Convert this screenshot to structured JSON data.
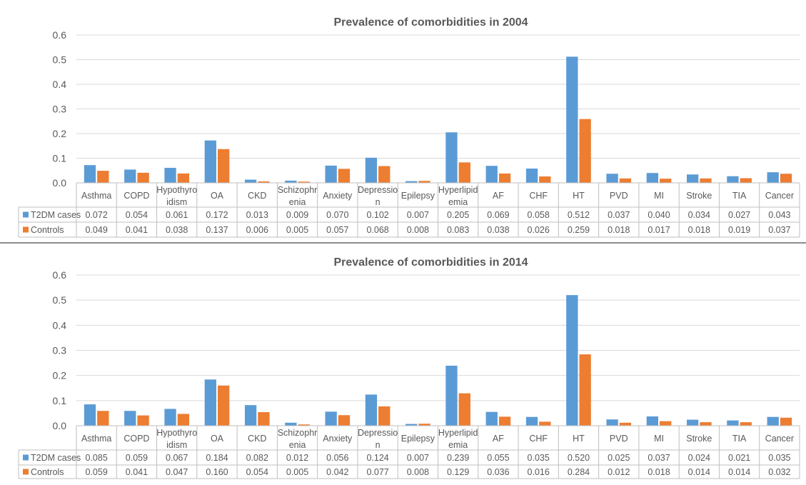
{
  "charts": [
    {
      "title": "Prevalence of comorbidities in 2004",
      "chart_data": {
        "type": "bar",
        "title": "Prevalence of comorbidities in 2004",
        "categories": [
          "Asthma",
          "COPD",
          "Hypothyroidism",
          "OA",
          "CKD",
          "Schizophrenia",
          "Anxiety",
          "Depression",
          "Epilepsy",
          "Hyperlipidemia",
          "AF",
          "CHF",
          "HT",
          "PVD",
          "MI",
          "Stroke",
          "TIA",
          "Cancer"
        ],
        "category_lines": [
          [
            "Asthma"
          ],
          [
            "COPD"
          ],
          [
            "Hypothyro",
            "idism"
          ],
          [
            "OA"
          ],
          [
            "CKD"
          ],
          [
            "Schizophr",
            "enia"
          ],
          [
            "Anxiety"
          ],
          [
            "Depressio",
            "n"
          ],
          [
            "Epilepsy"
          ],
          [
            "Hyperlipid",
            "emia"
          ],
          [
            "AF"
          ],
          [
            "CHF"
          ],
          [
            "HT"
          ],
          [
            "PVD"
          ],
          [
            "MI"
          ],
          [
            "Stroke"
          ],
          [
            "TIA"
          ],
          [
            "Cancer"
          ]
        ],
        "series": [
          {
            "name": "T2DM cases",
            "color": "#5b9bd5",
            "values": [
              0.072,
              0.054,
              0.061,
              0.172,
              0.013,
              0.009,
              0.07,
              0.102,
              0.007,
              0.205,
              0.069,
              0.058,
              0.512,
              0.037,
              0.04,
              0.034,
              0.027,
              0.043
            ],
            "labels": [
              "0.072",
              "0.054",
              "0.061",
              "0.172",
              "0.013",
              "0.009",
              "0.070",
              "0.102",
              "0.007",
              "0.205",
              "0.069",
              "0.058",
              "0.512",
              "0.037",
              "0.040",
              "0.034",
              "0.027",
              "0.043"
            ]
          },
          {
            "name": "Controls",
            "color": "#ed7d31",
            "values": [
              0.049,
              0.041,
              0.038,
              0.137,
              0.006,
              0.005,
              0.057,
              0.068,
              0.008,
              0.083,
              0.038,
              0.026,
              0.259,
              0.018,
              0.017,
              0.018,
              0.019,
              0.037
            ],
            "labels": [
              "0.049",
              "0.041",
              "0.038",
              "0.137",
              "0.006",
              "0.005",
              "0.057",
              "0.068",
              "0.008",
              "0.083",
              "0.038",
              "0.026",
              "0.259",
              "0.018",
              "0.017",
              "0.018",
              "0.019",
              "0.037"
            ]
          }
        ],
        "ylim": [
          0,
          0.6
        ],
        "yticks": [
          "0.0",
          "0.1",
          "0.2",
          "0.3",
          "0.4",
          "0.5",
          "0.6"
        ],
        "grid": true,
        "legend": "data-table"
      }
    },
    {
      "title": "Prevalence of comorbidities in 2014",
      "chart_data": {
        "type": "bar",
        "title": "Prevalence of comorbidities in 2014",
        "categories": [
          "Asthma",
          "COPD",
          "Hypothyroidism",
          "OA",
          "CKD",
          "Schizophrenia",
          "Anxiety",
          "Depression",
          "Epilepsy",
          "Hyperlipidemia",
          "AF",
          "CHF",
          "HT",
          "PVD",
          "MI",
          "Stroke",
          "TIA",
          "Cancer"
        ],
        "category_lines": [
          [
            "Asthma"
          ],
          [
            "COPD"
          ],
          [
            "Hypothyro",
            "idism"
          ],
          [
            "OA"
          ],
          [
            "CKD"
          ],
          [
            "Schizophr",
            "enia"
          ],
          [
            "Anxiety"
          ],
          [
            "Depressio",
            "n"
          ],
          [
            "Epilepsy"
          ],
          [
            "Hyperlipid",
            "emia"
          ],
          [
            "AF"
          ],
          [
            "CHF"
          ],
          [
            "HT"
          ],
          [
            "PVD"
          ],
          [
            "MI"
          ],
          [
            "Stroke"
          ],
          [
            "TIA"
          ],
          [
            "Cancer"
          ]
        ],
        "series": [
          {
            "name": "T2DM cases",
            "color": "#5b9bd5",
            "values": [
              0.085,
              0.059,
              0.067,
              0.184,
              0.082,
              0.012,
              0.056,
              0.124,
              0.007,
              0.239,
              0.055,
              0.035,
              0.52,
              0.025,
              0.037,
              0.024,
              0.021,
              0.035
            ],
            "labels": [
              "0.085",
              "0.059",
              "0.067",
              "0.184",
              "0.082",
              "0.012",
              "0.056",
              "0.124",
              "0.007",
              "0.239",
              "0.055",
              "0.035",
              "0.520",
              "0.025",
              "0.037",
              "0.024",
              "0.021",
              "0.035"
            ]
          },
          {
            "name": "Controls",
            "color": "#ed7d31",
            "values": [
              0.059,
              0.041,
              0.047,
              0.16,
              0.054,
              0.005,
              0.042,
              0.077,
              0.008,
              0.129,
              0.036,
              0.016,
              0.284,
              0.012,
              0.018,
              0.014,
              0.014,
              0.032
            ],
            "labels": [
              "0.059",
              "0.041",
              "0.047",
              "0.160",
              "0.054",
              "0.005",
              "0.042",
              "0.077",
              "0.008",
              "0.129",
              "0.036",
              "0.016",
              "0.284",
              "0.012",
              "0.018",
              "0.014",
              "0.014",
              "0.032"
            ]
          }
        ],
        "ylim": [
          0,
          0.6
        ],
        "yticks": [
          "0.0",
          "0.1",
          "0.2",
          "0.3",
          "0.4",
          "0.5",
          "0.6"
        ],
        "grid": true,
        "legend": "data-table"
      }
    }
  ]
}
